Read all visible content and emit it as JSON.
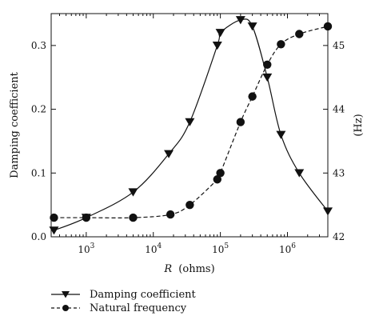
{
  "chart_data": {
    "type": "line",
    "xlabel_var": "R",
    "xlabel_unit": "(ohms)",
    "xscale": "log",
    "xlim": [
      300,
      4000000
    ],
    "x_ticks": [
      {
        "value": 1000,
        "base": "10",
        "exp": "3"
      },
      {
        "value": 10000,
        "base": "10",
        "exp": "4"
      },
      {
        "value": 100000,
        "base": "10",
        "exp": "5"
      },
      {
        "value": 1000000,
        "base": "10",
        "exp": "6"
      }
    ],
    "y_left": {
      "label": "Damping coefficient",
      "lim": [
        0,
        0.35
      ],
      "ticks": [
        "0.0",
        "0.1",
        "0.2",
        "0.3"
      ],
      "tick_values": [
        0,
        0.1,
        0.2,
        0.3
      ]
    },
    "y_right": {
      "label": "(Hz)",
      "lim": [
        42,
        45.5
      ],
      "ticks": [
        "42",
        "43",
        "44",
        "45"
      ],
      "tick_values": [
        42,
        43,
        44,
        45
      ]
    },
    "series": [
      {
        "name": "Damping coefficient",
        "axis": "left",
        "marker": "triangle-down",
        "line": "solid",
        "color": "#111111",
        "x": [
          330,
          1000,
          5000,
          17000,
          35000,
          90000,
          100000,
          200000,
          300000,
          500000,
          800000,
          1500000,
          4000000
        ],
        "y": [
          0.01,
          0.03,
          0.07,
          0.13,
          0.18,
          0.3,
          0.32,
          0.34,
          0.33,
          0.25,
          0.16,
          0.1,
          0.04
        ]
      },
      {
        "name": "Natural frequency",
        "axis": "right",
        "marker": "circle",
        "line": "dashed",
        "color": "#111111",
        "x": [
          330,
          1000,
          5000,
          18000,
          35000,
          90000,
          100000,
          200000,
          300000,
          500000,
          800000,
          1500000,
          4000000
        ],
        "y": [
          42.3,
          42.3,
          42.3,
          42.35,
          42.5,
          42.9,
          43.0,
          43.8,
          44.2,
          44.7,
          45.02,
          45.18,
          45.3
        ]
      }
    ],
    "legend_position": "bottom-left"
  }
}
